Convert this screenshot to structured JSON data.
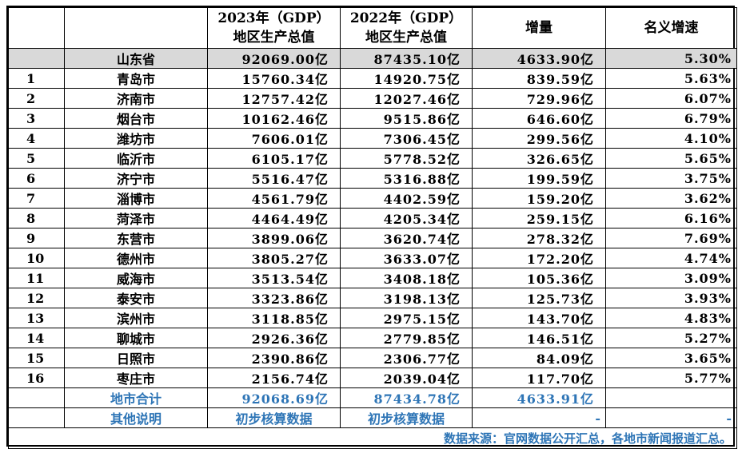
{
  "header": {
    "col_2023_line1": "2023年（GDP）",
    "col_2023_line2": "地区生产总值",
    "col_2022_line1": "2022年（GDP）",
    "col_2022_line2": "地区生产总值",
    "col_increase": "增量",
    "col_growth": "名义增速"
  },
  "province": {
    "name": "山东省",
    "gdp2023": "92069.00亿",
    "gdp2022": "87435.10亿",
    "increase": "4633.90亿",
    "growth": "5.30%"
  },
  "rows": [
    {
      "rank": "1",
      "city": "青岛市",
      "gdp2023": "15760.34亿",
      "gdp2022": "14920.75亿",
      "increase": "839.59亿",
      "growth": "5.63%"
    },
    {
      "rank": "2",
      "city": "济南市",
      "gdp2023": "12757.42亿",
      "gdp2022": "12027.46亿",
      "increase": "729.96亿",
      "growth": "6.07%"
    },
    {
      "rank": "3",
      "city": "烟台市",
      "gdp2023": "10162.46亿",
      "gdp2022": "9515.86亿",
      "increase": "646.60亿",
      "growth": "6.79%"
    },
    {
      "rank": "4",
      "city": "潍坊市",
      "gdp2023": "7606.01亿",
      "gdp2022": "7306.45亿",
      "increase": "299.56亿",
      "growth": "4.10%"
    },
    {
      "rank": "5",
      "city": "临沂市",
      "gdp2023": "6105.17亿",
      "gdp2022": "5778.52亿",
      "increase": "326.65亿",
      "growth": "5.65%"
    },
    {
      "rank": "6",
      "city": "济宁市",
      "gdp2023": "5516.47亿",
      "gdp2022": "5316.88亿",
      "increase": "199.59亿",
      "growth": "3.75%"
    },
    {
      "rank": "7",
      "city": "淄博市",
      "gdp2023": "4561.79亿",
      "gdp2022": "4402.59亿",
      "increase": "159.20亿",
      "growth": "3.62%"
    },
    {
      "rank": "8",
      "city": "菏泽市",
      "gdp2023": "4464.49亿",
      "gdp2022": "4205.34亿",
      "increase": "259.15亿",
      "growth": "6.16%"
    },
    {
      "rank": "9",
      "city": "东营市",
      "gdp2023": "3899.06亿",
      "gdp2022": "3620.74亿",
      "increase": "278.32亿",
      "growth": "7.69%"
    },
    {
      "rank": "10",
      "city": "德州市",
      "gdp2023": "3805.27亿",
      "gdp2022": "3633.07亿",
      "increase": "172.20亿",
      "growth": "4.74%"
    },
    {
      "rank": "11",
      "city": "威海市",
      "gdp2023": "3513.54亿",
      "gdp2022": "3408.18亿",
      "increase": "105.36亿",
      "growth": "3.09%"
    },
    {
      "rank": "12",
      "city": "泰安市",
      "gdp2023": "3323.86亿",
      "gdp2022": "3198.13亿",
      "increase": "125.73亿",
      "growth": "3.93%"
    },
    {
      "rank": "13",
      "city": "滨州市",
      "gdp2023": "3118.85亿",
      "gdp2022": "2975.15亿",
      "increase": "143.70亿",
      "growth": "4.83%"
    },
    {
      "rank": "14",
      "city": "聊城市",
      "gdp2023": "2926.36亿",
      "gdp2022": "2779.85亿",
      "increase": "146.51亿",
      "growth": "5.27%"
    },
    {
      "rank": "15",
      "city": "日照市",
      "gdp2023": "2390.86亿",
      "gdp2022": "2306.77亿",
      "increase": "84.09亿",
      "growth": "3.65%"
    },
    {
      "rank": "16",
      "city": "枣庄市",
      "gdp2023": "2156.74亿",
      "gdp2022": "2039.04亿",
      "increase": "117.70亿",
      "growth": "5.77%"
    }
  ],
  "total": {
    "label": "地市合计",
    "gdp2023": "92068.69亿",
    "gdp2022": "87434.78亿",
    "increase": "4633.91亿"
  },
  "other": {
    "label": "其他说明",
    "note2023": "初步核算数据",
    "note2022": "初步核算数据",
    "dash1": "-",
    "dash2": "-"
  },
  "source": "数据来源：官网数据公开汇总，各地市新闻报道汇总。",
  "colors": {
    "accent_blue": "#2E75B6",
    "province_row_bg": "#d9d9d9",
    "watermark": "#c7e6c9"
  }
}
